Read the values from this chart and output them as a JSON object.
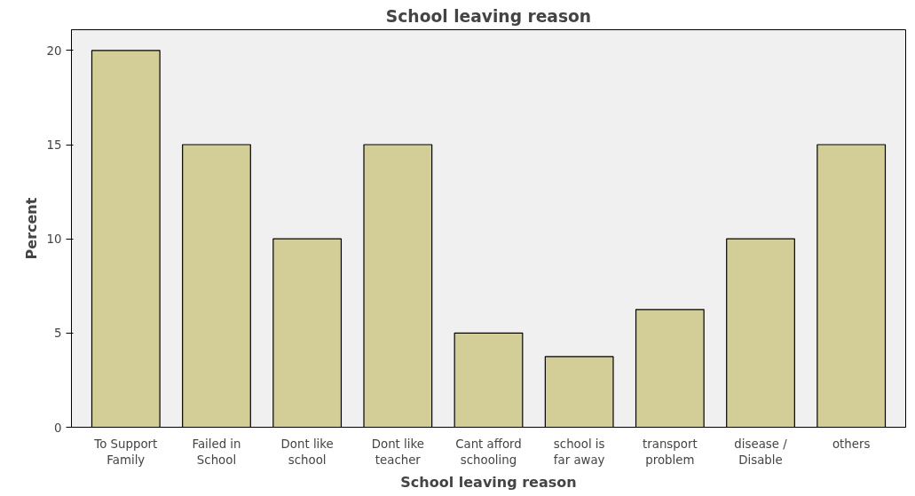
{
  "chart_data": {
    "type": "bar",
    "title": "School leaving reason",
    "xlabel": "School leaving reason",
    "ylabel": "Percent",
    "categories": [
      "To Support Family",
      "Failed in School",
      "Dont like school",
      "Dont like teacher",
      "Cant afford schooling",
      "school is far away",
      "transport problem",
      "disease / Disable",
      "others"
    ],
    "values": [
      20,
      15,
      10,
      15,
      5,
      3.75,
      6.25,
      10,
      15
    ],
    "color": "#d3ce97",
    "ylim": [
      0,
      21.1
    ],
    "yticks": [
      0,
      5,
      10,
      15,
      20
    ],
    "grid": false
  }
}
